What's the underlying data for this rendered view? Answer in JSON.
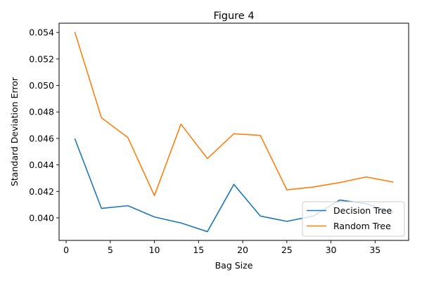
{
  "chart_data": {
    "type": "line",
    "title": "Figure 4",
    "xlabel": "Bag Size",
    "ylabel": "Standard Deviation Error",
    "xlim": [
      -0.8,
      38.8
    ],
    "ylim": [
      0.0383,
      0.0547
    ],
    "xticks": [
      0,
      5,
      10,
      15,
      20,
      25,
      30,
      35
    ],
    "xtick_labels": [
      "0",
      "5",
      "10",
      "15",
      "20",
      "25",
      "30",
      "35"
    ],
    "yticks": [
      0.04,
      0.042,
      0.044,
      0.046,
      0.048,
      0.05,
      0.052,
      0.054
    ],
    "ytick_labels": [
      "0.040",
      "0.042",
      "0.044",
      "0.046",
      "0.048",
      "0.050",
      "0.052",
      "0.054"
    ],
    "grid": false,
    "legend_position": "lower-right",
    "x": [
      1,
      4,
      7,
      10,
      13,
      16,
      19,
      22,
      25,
      28,
      31,
      34,
      37
    ],
    "series": [
      {
        "name": "Decision Tree",
        "color": "#1f77b4",
        "values": [
          0.04595,
          0.04072,
          0.04092,
          0.04007,
          0.03962,
          0.03896,
          0.04253,
          0.04014,
          0.03974,
          0.04014,
          0.04135,
          0.04107,
          0.0404
        ]
      },
      {
        "name": "Random Tree",
        "color": "#ff7f0e",
        "values": [
          0.054,
          0.04756,
          0.04606,
          0.04168,
          0.04708,
          0.04448,
          0.04635,
          0.04623,
          0.04212,
          0.04233,
          0.04267,
          0.04309,
          0.04271
        ]
      }
    ]
  }
}
